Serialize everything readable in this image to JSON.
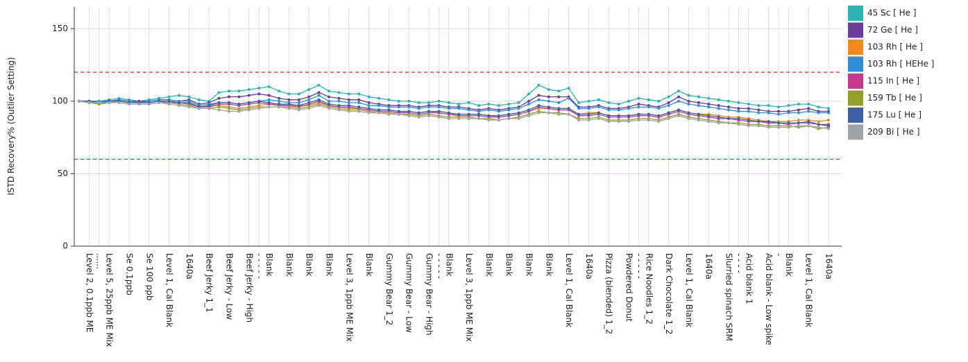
{
  "chart_data": {
    "type": "line",
    "y_label": "ISTD Recovery% (Outlier Setting)",
    "ylim": [
      0,
      165
    ],
    "yticks": [
      0,
      50,
      100,
      150
    ],
    "grid": true,
    "legend_position": "right",
    "reference_lines": [
      120,
      60
    ],
    "reference_color": "#e8202a",
    "categories": [
      null,
      "Level 2, 0.1ppb ME",
      "......",
      "Level 5, 25ppb ME Mix",
      null,
      "Se 0.1ppb",
      null,
      "Se 100 ppb",
      null,
      "Level 1, Cal Blank",
      null,
      "1640a",
      null,
      "Beef Jerky 1_1",
      null,
      "Beef Jerky - Low",
      null,
      "Beef Jerky - High",
      "- - - - -",
      "Blank",
      null,
      "Blank",
      null,
      "Blank",
      null,
      "Blank",
      null,
      "Level 3, 1ppb ME Mix",
      null,
      "Blank",
      null,
      "Gummy Bear 1_2",
      null,
      "Gummy Bear - Low",
      null,
      "Gummy Bear - High",
      "- - - - -",
      "Blank",
      null,
      "Level 3, 1ppb ME Mix",
      null,
      "Blank",
      null,
      "Blank",
      null,
      "Blank",
      null,
      "Blank",
      null,
      "Level 1, Cal Blank",
      null,
      "1640a",
      null,
      "Pizza (blended) 1_2",
      null,
      "Powdered Donut",
      "- - - - -",
      "Rice Noodles 1_2",
      null,
      "Dark Chocolate 1_2",
      null,
      "Level 1, Cal Blank",
      null,
      "1640a",
      null,
      "Slurried spinach SRM",
      "- - - -",
      "Acid blank 1",
      null,
      "Acid blank - Low spike",
      "-",
      "Blank",
      null,
      "Level 1, Cal Blank",
      null,
      "1640a"
    ],
    "series": [
      {
        "name": "45 Sc [ He ]",
        "color": "#2ab5b3",
        "values": [
          100,
          100,
          100,
          101,
          102,
          101,
          100,
          101,
          102,
          103,
          104,
          103,
          101,
          100,
          106,
          107,
          107,
          108,
          109,
          110,
          107,
          105,
          105,
          108,
          111,
          107,
          106,
          105,
          105,
          103,
          102,
          101,
          100,
          100,
          99,
          99,
          100,
          99,
          98,
          99,
          97,
          98,
          97,
          98,
          99,
          105,
          111,
          108,
          107,
          109,
          99,
          100,
          101,
          99,
          98,
          100,
          102,
          101,
          100,
          103,
          107,
          104,
          103,
          102,
          101,
          100,
          99,
          98,
          97,
          97,
          96,
          97,
          98,
          98,
          96,
          95
        ]
      },
      {
        "name": "72 Ge [ He ]",
        "color": "#6a3d9a",
        "values": [
          100,
          100,
          99,
          100,
          101,
          100,
          100,
          100,
          101,
          101,
          100,
          101,
          98,
          99,
          102,
          103,
          103,
          104,
          105,
          104,
          102,
          101,
          101,
          103,
          106,
          103,
          102,
          101,
          101,
          99,
          98,
          97,
          97,
          97,
          96,
          97,
          97,
          96,
          96,
          95,
          94,
          95,
          94,
          95,
          96,
          100,
          104,
          103,
          103,
          103,
          96,
          96,
          97,
          95,
          95,
          96,
          98,
          97,
          96,
          99,
          103,
          100,
          99,
          98,
          97,
          96,
          95,
          95,
          94,
          93,
          93,
          93,
          94,
          95,
          93,
          93
        ]
      },
      {
        "name": "103 Rh [ He ]",
        "color": "#f28a1e",
        "values": [
          100,
          99,
          98,
          99,
          100,
          100,
          99,
          99,
          100,
          100,
          99,
          98,
          96,
          97,
          97,
          96,
          95,
          96,
          97,
          98,
          98,
          97,
          97,
          97,
          99,
          97,
          96,
          95,
          95,
          94,
          93,
          93,
          92,
          93,
          92,
          93,
          92,
          91,
          91,
          91,
          91,
          90,
          89,
          90,
          91,
          93,
          95,
          95,
          94,
          94,
          91,
          92,
          92,
          90,
          90,
          90,
          91,
          91,
          90,
          92,
          94,
          92,
          91,
          91,
          90,
          89,
          89,
          88,
          87,
          86,
          86,
          86,
          87,
          87,
          86,
          87
        ]
      },
      {
        "name": "103 Rh [ HEHe ]",
        "color": "#2e8fd6",
        "values": [
          100,
          100,
          100,
          100,
          101,
          100,
          99,
          100,
          101,
          101,
          100,
          100,
          97,
          98,
          99,
          99,
          98,
          99,
          100,
          101,
          100,
          99,
          99,
          101,
          104,
          100,
          100,
          99,
          99,
          97,
          97,
          96,
          96,
          96,
          95,
          96,
          96,
          95,
          95,
          94,
          93,
          94,
          93,
          94,
          95,
          98,
          101,
          100,
          99,
          102,
          95,
          95,
          96,
          94,
          94,
          95,
          96,
          96,
          95,
          97,
          100,
          98,
          97,
          96,
          95,
          94,
          93,
          93,
          92,
          92,
          91,
          92,
          92,
          93,
          92,
          92
        ]
      },
      {
        "name": "115 In [ He ]",
        "color": "#c4398a",
        "values": [
          100,
          99,
          99,
          100,
          100,
          99,
          99,
          99,
          100,
          99,
          99,
          98,
          96,
          96,
          98,
          98,
          97,
          98,
          99,
          98,
          97,
          97,
          96,
          98,
          100,
          97,
          96,
          96,
          95,
          94,
          93,
          93,
          92,
          92,
          91,
          92,
          92,
          91,
          90,
          90,
          90,
          89,
          89,
          90,
          91,
          93,
          96,
          95,
          94,
          94,
          90,
          90,
          91,
          89,
          89,
          89,
          90,
          90,
          89,
          91,
          93,
          91,
          90,
          89,
          88,
          88,
          87,
          86,
          86,
          85,
          85,
          84,
          85,
          85,
          84,
          84
        ]
      },
      {
        "name": "159 Tb [ He ]",
        "color": "#93a025",
        "values": [
          100,
          99,
          98,
          99,
          99,
          98,
          98,
          98,
          99,
          99,
          98,
          97,
          95,
          95,
          96,
          95,
          94,
          95,
          96,
          96,
          96,
          96,
          95,
          96,
          98,
          96,
          95,
          94,
          94,
          93,
          92,
          92,
          91,
          91,
          90,
          91,
          90,
          89,
          89,
          89,
          88,
          88,
          87,
          88,
          89,
          91,
          93,
          92,
          92,
          91,
          88,
          88,
          89,
          87,
          87,
          87,
          88,
          88,
          87,
          89,
          91,
          89,
          88,
          87,
          86,
          85,
          85,
          84,
          84,
          83,
          83,
          83,
          82,
          83,
          81,
          82
        ]
      },
      {
        "name": "175 Lu [ He ]",
        "color": "#3e5fa8",
        "values": [
          100,
          100,
          99,
          100,
          100,
          99,
          99,
          99,
          100,
          100,
          99,
          99,
          96,
          97,
          99,
          99,
          98,
          99,
          100,
          99,
          98,
          98,
          97,
          99,
          101,
          98,
          97,
          97,
          96,
          95,
          94,
          94,
          93,
          93,
          92,
          93,
          93,
          92,
          91,
          91,
          91,
          90,
          90,
          91,
          92,
          94,
          97,
          96,
          95,
          95,
          91,
          91,
          92,
          90,
          90,
          90,
          91,
          91,
          90,
          92,
          94,
          92,
          91,
          90,
          89,
          88,
          88,
          87,
          86,
          86,
          85,
          85,
          85,
          86,
          84,
          83
        ]
      },
      {
        "name": "209 Bi [ He ]",
        "color": "#a0a4a8",
        "values": [
          100,
          99,
          99,
          99,
          99,
          98,
          98,
          98,
          99,
          98,
          97,
          96,
          95,
          95,
          94,
          93,
          93,
          94,
          95,
          96,
          96,
          95,
          94,
          95,
          97,
          95,
          94,
          93,
          93,
          92,
          92,
          91,
          91,
          90,
          89,
          90,
          89,
          88,
          88,
          88,
          88,
          87,
          87,
          88,
          88,
          90,
          92,
          92,
          91,
          91,
          87,
          87,
          88,
          86,
          86,
          86,
          87,
          87,
          86,
          88,
          90,
          88,
          87,
          86,
          85,
          85,
          84,
          83,
          83,
          82,
          82,
          82,
          83,
          83,
          82,
          81
        ]
      }
    ]
  }
}
